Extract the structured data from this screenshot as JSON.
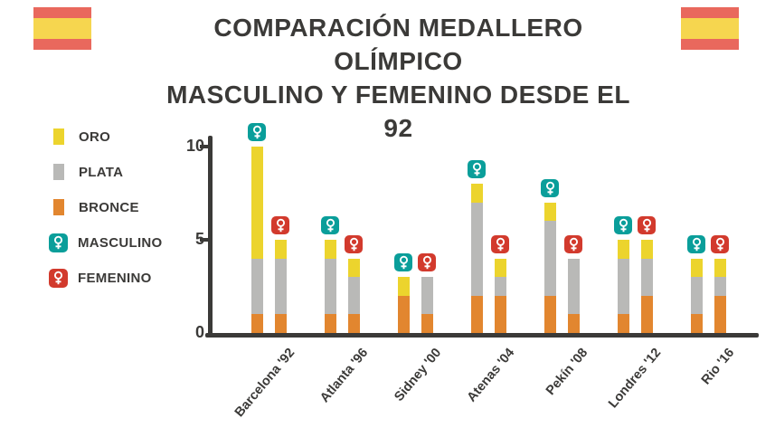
{
  "title": {
    "line1": "COMPARACIÓN MEDALLERO OLÍMPICO",
    "line2": "MASCULINO Y FEMENINO DESDE EL 92"
  },
  "legend": {
    "oro": "ORO",
    "plata": "PLATA",
    "bronce": "BRONCE",
    "masculino": "MASCULINO",
    "femenino": "FEMENINO"
  },
  "icons": {
    "masculino_badge": "gender-symbol",
    "femenino_badge": "gender-symbol",
    "corner_left": "spain-flag",
    "corner_right": "spain-flag"
  },
  "colors": {
    "oro": "#ecd42d",
    "plata": "#b9b9b7",
    "bronce": "#e2862f",
    "masculino": "#0a9e9a",
    "femenino": "#d23a2d",
    "axis": "#3b3a38",
    "text": "#3b3a38",
    "flagRed": "#e9685d",
    "flagYellow": "#f6d64f"
  },
  "chart_data": {
    "type": "bar",
    "stacked": true,
    "title": "Comparación medallero olímpico masculino y femenino desde el 92",
    "xlabel": "",
    "ylabel": "",
    "ylim": [
      0,
      10.5
    ],
    "yticks": [
      0,
      5,
      10
    ],
    "grid": false,
    "legend_position": "left",
    "segment_order_bottom_to_top": [
      "bronce",
      "plata",
      "oro"
    ],
    "categories": [
      "Barcelona '92",
      "Atlanta '96",
      "Sidney '00",
      "Atenas '04",
      "Pekín '08",
      "Londres '12",
      "Rio '16"
    ],
    "groups": [
      {
        "label": "Barcelona '92",
        "masculino": {
          "oro": 6,
          "plata": 3,
          "bronce": 1
        },
        "femenino": {
          "oro": 1,
          "plata": 3,
          "bronce": 1
        }
      },
      {
        "label": "Atlanta '96",
        "masculino": {
          "oro": 1,
          "plata": 3,
          "bronce": 1
        },
        "femenino": {
          "oro": 1,
          "plata": 2,
          "bronce": 1
        }
      },
      {
        "label": "Sidney '00",
        "masculino": {
          "oro": 1,
          "plata": 0,
          "bronce": 2
        },
        "femenino": {
          "oro": 0,
          "plata": 2,
          "bronce": 1
        }
      },
      {
        "label": "Atenas '04",
        "masculino": {
          "oro": 1,
          "plata": 5,
          "bronce": 2
        },
        "femenino": {
          "oro": 1,
          "plata": 1,
          "bronce": 2
        }
      },
      {
        "label": "Pekín '08",
        "masculino": {
          "oro": 1,
          "plata": 4,
          "bronce": 2
        },
        "femenino": {
          "oro": 0,
          "plata": 3,
          "bronce": 1
        }
      },
      {
        "label": "Londres '12",
        "masculino": {
          "oro": 1,
          "plata": 3,
          "bronce": 1
        },
        "femenino": {
          "oro": 1,
          "plata": 2,
          "bronce": 2
        }
      },
      {
        "label": "Rio '16",
        "masculino": {
          "oro": 1,
          "plata": 2,
          "bronce": 1
        },
        "femenino": {
          "oro": 1,
          "plata": 1,
          "bronce": 2
        }
      }
    ]
  }
}
